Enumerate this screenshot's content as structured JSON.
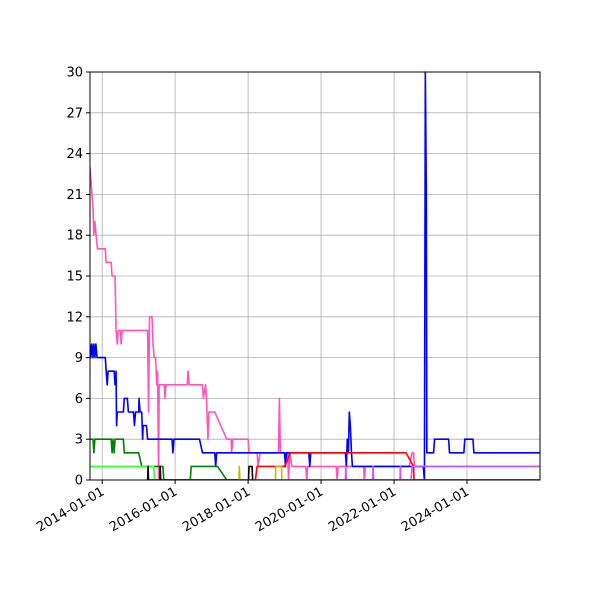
{
  "chart_data": {
    "type": "line",
    "xlabel": "",
    "ylabel": "",
    "grid": true,
    "xlim": [
      "2013-09-01",
      "2026-01-01"
    ],
    "ylim": [
      0,
      30
    ],
    "yticks": [
      "0",
      "3",
      "6",
      "9",
      "12",
      "15",
      "18",
      "21",
      "24",
      "27",
      "30"
    ],
    "xticks": [
      {
        "date": "2014-01-01",
        "label": "2014-01-01"
      },
      {
        "date": "2016-01-01",
        "label": "2016-01-01"
      },
      {
        "date": "2018-01-01",
        "label": "2018-01-01"
      },
      {
        "date": "2020-01-01",
        "label": "2020-01-01"
      },
      {
        "date": "2022-01-01",
        "label": "2022-01-01"
      },
      {
        "date": "2024-01-01",
        "label": "2024-01-01"
      }
    ],
    "series": [
      {
        "color": "#ff55bb",
        "points": [
          [
            "2013-09-01",
            23
          ],
          [
            "2013-10-01",
            20
          ],
          [
            "2013-10-10",
            18
          ],
          [
            "2013-10-20",
            19
          ],
          [
            "2013-11-01",
            18
          ],
          [
            "2013-11-15",
            17
          ],
          [
            "2014-02-01",
            17
          ],
          [
            "2014-02-10",
            16
          ],
          [
            "2014-04-01",
            16
          ],
          [
            "2014-04-10",
            15
          ],
          [
            "2014-05-10",
            15
          ],
          [
            "2014-05-20",
            11
          ],
          [
            "2014-06-01",
            10
          ],
          [
            "2014-06-10",
            11
          ],
          [
            "2014-07-01",
            11
          ],
          [
            "2014-07-10",
            10
          ],
          [
            "2014-07-20",
            11
          ],
          [
            "2015-04-01",
            11
          ],
          [
            "2015-04-10",
            5
          ],
          [
            "2015-04-20",
            12
          ],
          [
            "2015-05-15",
            12
          ],
          [
            "2015-05-25",
            10
          ],
          [
            "2015-06-05",
            9
          ],
          [
            "2015-06-20",
            9
          ],
          [
            "2015-07-01",
            7
          ],
          [
            "2015-07-10",
            8
          ],
          [
            "2015-07-20",
            0
          ],
          [
            "2015-07-25",
            7
          ],
          [
            "2015-09-15",
            7
          ],
          [
            "2015-09-20",
            6
          ],
          [
            "2015-10-01",
            7
          ],
          [
            "2016-05-01",
            7
          ],
          [
            "2016-05-10",
            8
          ],
          [
            "2016-05-20",
            7
          ],
          [
            "2016-10-01",
            7
          ],
          [
            "2016-10-10",
            6
          ],
          [
            "2016-11-01",
            7
          ],
          [
            "2016-11-10",
            6
          ],
          [
            "2016-11-25",
            3
          ],
          [
            "2016-12-05",
            5
          ],
          [
            "2017-02-01",
            5
          ],
          [
            "2017-06-01",
            3
          ],
          [
            "2017-07-15",
            3
          ],
          [
            "2017-07-20",
            2
          ],
          [
            "2017-08-01",
            3
          ],
          [
            "2018-01-01",
            3
          ],
          [
            "2018-01-10",
            2
          ],
          [
            "2018-03-01",
            2
          ],
          [
            "2018-04-01",
            2
          ],
          [
            "2018-04-10",
            1
          ],
          [
            "2018-05-01",
            2
          ],
          [
            "2018-11-01",
            2
          ],
          [
            "2018-11-10",
            6
          ],
          [
            "2018-11-20",
            2
          ],
          [
            "2019-02-01",
            2
          ],
          [
            "2019-02-10",
            0
          ],
          [
            "2019-02-20",
            2
          ],
          [
            "2019-03-15",
            1
          ],
          [
            "2019-05-01",
            1
          ],
          [
            "2019-08-01",
            1
          ],
          [
            "2019-08-10",
            0
          ],
          [
            "2019-08-20",
            1
          ],
          [
            "2020-06-01",
            1
          ],
          [
            "2020-06-10",
            0
          ],
          [
            "2020-06-20",
            1
          ],
          [
            "2021-03-01",
            1
          ],
          [
            "2021-03-10",
            0
          ],
          [
            "2021-03-20",
            1
          ],
          [
            "2022-06-01",
            1
          ],
          [
            "2022-07-01",
            2
          ],
          [
            "2022-07-15",
            2
          ],
          [
            "2022-07-25",
            1
          ],
          [
            "2026-01-01",
            1
          ]
        ]
      },
      {
        "color": "#0000ff",
        "points": [
          [
            "2013-09-01",
            10
          ],
          [
            "2013-09-10",
            9
          ],
          [
            "2013-09-20",
            10
          ],
          [
            "2013-10-01",
            9
          ],
          [
            "2013-10-10",
            10
          ],
          [
            "2013-10-20",
            9
          ],
          [
            "2013-10-30",
            10
          ],
          [
            "2013-11-10",
            9
          ],
          [
            "2014-02-01",
            9
          ],
          [
            "2014-02-10",
            8
          ],
          [
            "2014-02-20",
            7
          ],
          [
            "2014-03-01",
            8
          ],
          [
            "2014-05-01",
            8
          ],
          [
            "2014-05-10",
            7
          ],
          [
            "2014-05-20",
            8
          ],
          [
            "2014-05-25",
            4
          ],
          [
            "2014-06-01",
            5
          ],
          [
            "2014-08-01",
            5
          ],
          [
            "2014-08-10",
            6
          ],
          [
            "2014-09-10",
            6
          ],
          [
            "2014-09-20",
            5
          ],
          [
            "2014-11-10",
            5
          ],
          [
            "2014-11-20",
            4
          ],
          [
            "2014-12-01",
            5
          ],
          [
            "2015-01-01",
            5
          ],
          [
            "2015-01-05",
            6
          ],
          [
            "2015-01-15",
            5
          ],
          [
            "2015-02-01",
            5
          ],
          [
            "2015-02-10",
            3
          ],
          [
            "2015-02-15",
            4
          ],
          [
            "2015-03-20",
            4
          ],
          [
            "2015-04-01",
            3
          ],
          [
            "2015-12-01",
            3
          ],
          [
            "2015-12-10",
            2
          ],
          [
            "2015-12-20",
            3
          ],
          [
            "2016-09-01",
            3
          ],
          [
            "2016-10-01",
            2
          ],
          [
            "2017-02-01",
            2
          ],
          [
            "2017-02-10",
            1
          ],
          [
            "2017-02-20",
            2
          ],
          [
            "2019-01-01",
            2
          ],
          [
            "2019-01-10",
            1
          ],
          [
            "2019-01-20",
            2
          ],
          [
            "2019-09-01",
            2
          ],
          [
            "2019-09-10",
            1
          ],
          [
            "2019-09-20",
            2
          ],
          [
            "2020-09-01",
            2
          ],
          [
            "2020-09-10",
            1
          ],
          [
            "2020-09-20",
            3
          ],
          [
            "2020-10-01",
            2
          ],
          [
            "2020-10-10",
            5
          ],
          [
            "2020-10-20",
            4
          ],
          [
            "2020-11-01",
            2
          ],
          [
            "2020-11-10",
            1
          ],
          [
            "2021-01-01",
            1
          ],
          [
            "2022-10-20",
            1
          ],
          [
            "2022-11-01",
            0
          ],
          [
            "2022-11-10",
            30
          ],
          [
            "2022-11-20",
            21
          ],
          [
            "2022-11-25",
            2
          ],
          [
            "2023-02-01",
            2
          ],
          [
            "2023-02-10",
            3
          ],
          [
            "2023-07-01",
            3
          ],
          [
            "2023-07-10",
            2
          ],
          [
            "2023-12-01",
            2
          ],
          [
            "2023-12-10",
            3
          ],
          [
            "2024-03-01",
            3
          ],
          [
            "2024-03-10",
            2
          ],
          [
            "2026-01-01",
            2
          ]
        ]
      },
      {
        "color": "#008000",
        "points": [
          [
            "2013-09-01",
            3
          ],
          [
            "2013-10-01",
            3
          ],
          [
            "2013-10-10",
            2
          ],
          [
            "2013-10-20",
            3
          ],
          [
            "2014-04-01",
            3
          ],
          [
            "2014-04-10",
            2
          ],
          [
            "2014-04-20",
            3
          ],
          [
            "2014-05-01",
            2
          ],
          [
            "2014-05-10",
            3
          ],
          [
            "2014-08-01",
            3
          ],
          [
            "2014-08-10",
            2
          ],
          [
            "2015-01-01",
            2
          ],
          [
            "2015-02-01",
            1
          ],
          [
            "2015-09-01",
            1
          ],
          [
            "2015-09-10",
            0
          ],
          [
            "2016-06-01",
            0
          ],
          [
            "2016-06-10",
            1
          ],
          [
            "2017-03-01",
            1
          ],
          [
            "2017-06-01",
            0
          ],
          [
            "2026-01-01",
            0
          ]
        ]
      },
      {
        "color": "#33ff33",
        "points": [
          [
            "2013-09-01",
            1
          ],
          [
            "2015-06-01",
            1
          ],
          [
            "2015-06-10",
            0
          ],
          [
            "2026-01-01",
            0
          ]
        ]
      },
      {
        "color": "#ff0000",
        "points": [
          [
            "2018-01-15",
            0
          ],
          [
            "2018-03-15",
            0
          ],
          [
            "2018-04-01",
            1
          ],
          [
            "2018-05-01",
            1
          ],
          [
            "2019-01-01",
            1
          ],
          [
            "2019-03-01",
            2
          ],
          [
            "2022-05-01",
            2
          ],
          [
            "2022-07-15",
            1
          ],
          [
            "2022-07-20",
            0
          ],
          [
            "2026-01-01",
            0
          ]
        ]
      },
      {
        "color": "#000000",
        "points": [
          [
            "2015-04-01",
            0
          ],
          [
            "2015-04-05",
            1
          ],
          [
            "2015-04-10",
            0
          ],
          [
            "2015-08-01",
            0
          ],
          [
            "2015-08-05",
            1
          ],
          [
            "2015-08-10",
            0
          ],
          [
            "2018-01-05",
            0
          ],
          [
            "2018-01-10",
            1
          ],
          [
            "2018-02-10",
            1
          ],
          [
            "2018-02-15",
            0
          ]
        ]
      },
      {
        "color": "#bbbb00",
        "points": [
          [
            "2017-10-01",
            0
          ],
          [
            "2017-10-05",
            1
          ],
          [
            "2017-10-10",
            0
          ],
          [
            "2018-10-01",
            0
          ],
          [
            "2018-10-05",
            1
          ],
          [
            "2018-12-01",
            1
          ],
          [
            "2018-12-05",
            0
          ]
        ]
      },
      {
        "color": "#cc55ff",
        "points": [
          [
            "2020-09-01",
            0
          ],
          [
            "2020-09-05",
            1
          ],
          [
            "2020-09-10",
            0
          ],
          [
            "2021-06-01",
            0
          ],
          [
            "2021-06-05",
            1
          ],
          [
            "2021-06-10",
            0
          ],
          [
            "2022-03-01",
            0
          ],
          [
            "2022-03-05",
            1
          ],
          [
            "2022-03-10",
            0
          ],
          [
            "2022-06-20",
            0
          ],
          [
            "2022-07-01",
            1
          ],
          [
            "2026-01-01",
            1
          ]
        ]
      }
    ]
  }
}
